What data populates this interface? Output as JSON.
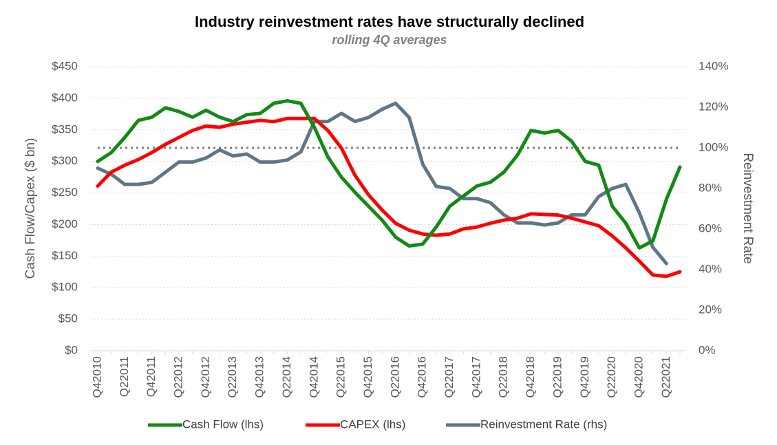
{
  "chart_data": {
    "type": "line",
    "title": "Industry reinvestment rates have structurally declined",
    "subtitle": "rolling 4Q averages",
    "ylabel": "Cash Flow/Capex ($ bn)",
    "y2label": "Reinvestment Rate",
    "categories": [
      "Q42010",
      null,
      "Q22011",
      null,
      "Q42011",
      null,
      "Q22012",
      null,
      "Q42012",
      null,
      "Q22013",
      null,
      "Q42013",
      null,
      "Q22014",
      null,
      "Q42014",
      null,
      "Q22015",
      null,
      "Q42015",
      null,
      "Q22016",
      null,
      "Q42016",
      null,
      "Q22017",
      null,
      "Q42017",
      null,
      "Q22018",
      null,
      "Q42018",
      null,
      "Q22019",
      null,
      "Q42019",
      null,
      "Q22020",
      null,
      "Q42020",
      null,
      "Q22021",
      null
    ],
    "series": [
      {
        "name": "Cash Flow (lhs)",
        "color": "#138a13",
        "axis": "y",
        "values": [
          300,
          314,
          338,
          365,
          370,
          385,
          379,
          370,
          381,
          370,
          363,
          374,
          376,
          392,
          396,
          392,
          354,
          307,
          275,
          251,
          229,
          207,
          180,
          166,
          169,
          196,
          229,
          245,
          261,
          267,
          283,
          310,
          349,
          345,
          349,
          332,
          300,
          294,
          229,
          202,
          163,
          174,
          240,
          291
        ]
      },
      {
        "name": "CAPEX (lhs)",
        "color": "#ff0000",
        "axis": "y",
        "values": [
          261,
          283,
          294,
          303,
          314,
          327,
          338,
          349,
          356,
          354,
          359,
          362,
          365,
          363,
          368,
          368,
          368,
          349,
          321,
          278,
          247,
          223,
          202,
          191,
          185,
          183,
          185,
          193,
          196,
          202,
          207,
          210,
          217,
          216,
          215,
          210,
          204,
          198,
          182,
          163,
          142,
          120,
          118,
          125
        ]
      },
      {
        "name": "Reinvestment Rate (rhs)",
        "color": "#5f7686",
        "axis": "y2",
        "values": [
          90,
          87,
          82,
          82,
          83,
          88,
          93,
          93,
          95,
          99,
          96,
          97,
          93,
          93,
          94,
          98,
          113,
          113,
          117,
          113,
          115,
          119,
          122,
          115,
          92,
          81,
          80,
          75,
          75,
          73,
          67,
          63,
          63,
          62,
          63,
          67,
          67,
          76,
          80,
          82,
          68,
          51,
          43,
          null
        ]
      }
    ],
    "reference_line": {
      "value": 100,
      "axis": "y2",
      "color": "#7f7f7f"
    },
    "ylim": [
      0,
      450
    ],
    "yticks": [
      {
        "value": 0,
        "label": "$0"
      },
      {
        "value": 50,
        "label": "$50"
      },
      {
        "value": 100,
        "label": "$100"
      },
      {
        "value": 150,
        "label": "$150"
      },
      {
        "value": 200,
        "label": "$200"
      },
      {
        "value": 250,
        "label": "$250"
      },
      {
        "value": 300,
        "label": "$300"
      },
      {
        "value": 350,
        "label": "$350"
      },
      {
        "value": 400,
        "label": "$400"
      },
      {
        "value": 450,
        "label": "$450"
      }
    ],
    "y2lim": [
      0,
      140
    ],
    "y2ticks": [
      {
        "value": 0,
        "label": "0%"
      },
      {
        "value": 20,
        "label": "20%"
      },
      {
        "value": 40,
        "label": "40%"
      },
      {
        "value": 60,
        "label": "60%"
      },
      {
        "value": 80,
        "label": "80%"
      },
      {
        "value": 100,
        "label": "100%"
      },
      {
        "value": 120,
        "label": "120%"
      },
      {
        "value": 140,
        "label": "140%"
      }
    ],
    "grid": true,
    "legend": "bottom"
  }
}
